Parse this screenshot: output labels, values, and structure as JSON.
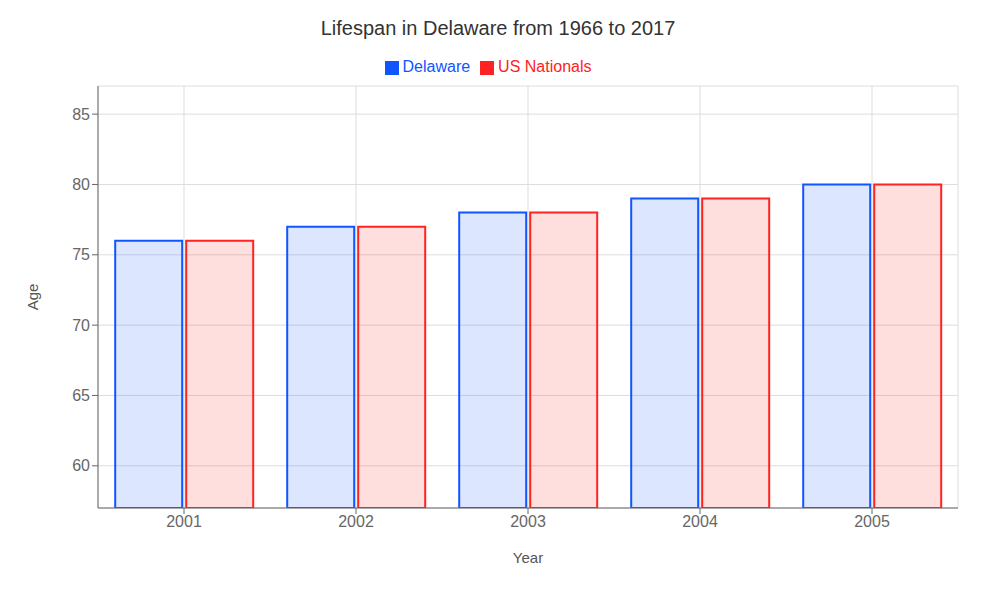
{
  "chart_data": {
    "type": "bar",
    "title": "Lifespan in Delaware from 1966 to 2017",
    "x_label": "Year",
    "y_label": "Age",
    "categories": [
      "2001",
      "2002",
      "2003",
      "2004",
      "2005"
    ],
    "series": [
      {
        "name": "Delaware",
        "color": "#1155ff",
        "values": [
          76,
          77,
          78,
          79,
          80
        ]
      },
      {
        "name": "US Nationals",
        "color": "#ff2222",
        "values": [
          76,
          77,
          78,
          79,
          80
        ]
      }
    ],
    "ylim": [
      57,
      87
    ],
    "yticks": [
      60,
      65,
      70,
      75,
      80,
      85
    ],
    "grid": true,
    "legend": "top"
  }
}
